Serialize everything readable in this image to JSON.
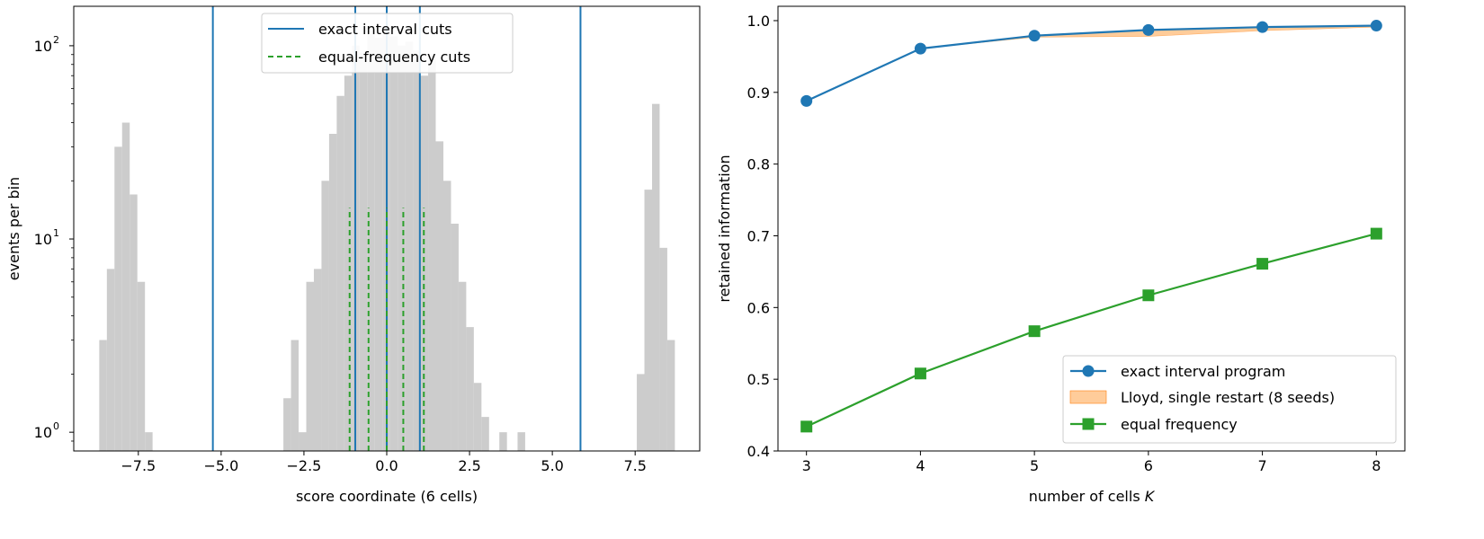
{
  "chart_data": [
    {
      "type": "histogram",
      "xlabel": "score coordinate (6 cells)",
      "ylabel": "events per bin",
      "xlim": [
        -9.45,
        9.45
      ],
      "xticks": [
        -7.5,
        -5.0,
        -2.5,
        0.0,
        2.5,
        5.0,
        7.5
      ],
      "xtick_labels": [
        "−7.5",
        "−5.0",
        "−2.5",
        "0.0",
        "2.5",
        "5.0",
        "7.5"
      ],
      "yscale": "log",
      "ylim": [
        0.8,
        160
      ],
      "yticks": [
        {
          "value": 1,
          "base": "10",
          "exp": "0"
        },
        {
          "value": 10,
          "base": "10",
          "exp": "1"
        },
        {
          "value": 100,
          "base": "10",
          "exp": "2"
        }
      ],
      "bin_width": 0.23,
      "bins": [
        {
          "x0": -8.68,
          "count": 3
        },
        {
          "x0": -8.45,
          "count": 7
        },
        {
          "x0": -8.22,
          "count": 30
        },
        {
          "x0": -7.99,
          "count": 40
        },
        {
          "x0": -7.76,
          "count": 17
        },
        {
          "x0": -7.53,
          "count": 6
        },
        {
          "x0": -7.3,
          "count": 1
        },
        {
          "x0": -3.12,
          "count": 1.5
        },
        {
          "x0": -2.89,
          "count": 3
        },
        {
          "x0": -2.66,
          "count": 1
        },
        {
          "x0": -2.43,
          "count": 6
        },
        {
          "x0": -2.2,
          "count": 7
        },
        {
          "x0": -1.97,
          "count": 20
        },
        {
          "x0": -1.74,
          "count": 35
        },
        {
          "x0": -1.51,
          "count": 55
        },
        {
          "x0": -1.28,
          "count": 70
        },
        {
          "x0": -1.05,
          "count": 100
        },
        {
          "x0": -0.82,
          "count": 92
        },
        {
          "x0": -0.59,
          "count": 120
        },
        {
          "x0": -0.36,
          "count": 110
        },
        {
          "x0": -0.13,
          "count": 118
        },
        {
          "x0": 0.1,
          "count": 112
        },
        {
          "x0": 0.33,
          "count": 100
        },
        {
          "x0": 0.56,
          "count": 105
        },
        {
          "x0": 0.79,
          "count": 95
        },
        {
          "x0": 1.02,
          "count": 70
        },
        {
          "x0": 1.25,
          "count": 90
        },
        {
          "x0": 1.48,
          "count": 32
        },
        {
          "x0": 1.71,
          "count": 20
        },
        {
          "x0": 1.94,
          "count": 12
        },
        {
          "x0": 2.17,
          "count": 6
        },
        {
          "x0": 2.4,
          "count": 3.5
        },
        {
          "x0": 2.63,
          "count": 1.8
        },
        {
          "x0": 2.86,
          "count": 1.2
        },
        {
          "x0": 3.4,
          "count": 1
        },
        {
          "x0": 3.95,
          "count": 1
        },
        {
          "x0": 7.55,
          "count": 2
        },
        {
          "x0": 7.78,
          "count": 18
        },
        {
          "x0": 8.01,
          "count": 50
        },
        {
          "x0": 8.24,
          "count": 9
        },
        {
          "x0": 8.47,
          "count": 3
        }
      ],
      "lines": [
        {
          "name": "exact interval cuts",
          "style": "solid",
          "color": "#1f77b4",
          "x": [
            -5.25,
            -0.95,
            0.0,
            1.0,
            5.85
          ],
          "y_top": 160
        },
        {
          "name": "equal-frequency cuts",
          "style": "dashed",
          "color": "#2ca02c",
          "x": [
            -1.12,
            -0.55,
            0.0,
            0.5,
            1.12
          ],
          "y_top": 14.5
        }
      ],
      "legend_position": "upper center",
      "bar_color": "#cccccc"
    },
    {
      "type": "line",
      "xlabel_text": "number of cells ",
      "xlabel_var": "K",
      "ylabel": "retained information",
      "x": [
        3,
        4,
        5,
        6,
        7,
        8
      ],
      "xlim": [
        2.75,
        8.25
      ],
      "ylim": [
        0.4,
        1.02
      ],
      "xticks": [
        3,
        4,
        5,
        6,
        7,
        8
      ],
      "xtick_labels": [
        "3",
        "4",
        "5",
        "6",
        "7",
        "8"
      ],
      "yticks": [
        0.4,
        0.5,
        0.6,
        0.7,
        0.8,
        0.9,
        1.0
      ],
      "ytick_labels": [
        "0.4",
        "0.5",
        "0.6",
        "0.7",
        "0.8",
        "0.9",
        "1.0"
      ],
      "series": [
        {
          "name": "exact interval program",
          "marker": "circle",
          "color": "#1f77b4",
          "values": [
            0.888,
            0.961,
            0.979,
            0.987,
            0.991,
            0.993
          ]
        },
        {
          "name": "equal frequency",
          "marker": "square",
          "color": "#2ca02c",
          "values": [
            0.434,
            0.508,
            0.567,
            0.617,
            0.661,
            0.703
          ]
        }
      ],
      "band": {
        "name": "Lloyd, single restart (8 seeds)",
        "color": "#ffbb78",
        "edge": "#ff7f0e",
        "lower": [
          0.888,
          0.961,
          0.977,
          0.978,
          0.986,
          0.991
        ],
        "upper": [
          0.888,
          0.961,
          0.979,
          0.987,
          0.991,
          0.993
        ]
      },
      "legend_position": "lower right"
    }
  ]
}
